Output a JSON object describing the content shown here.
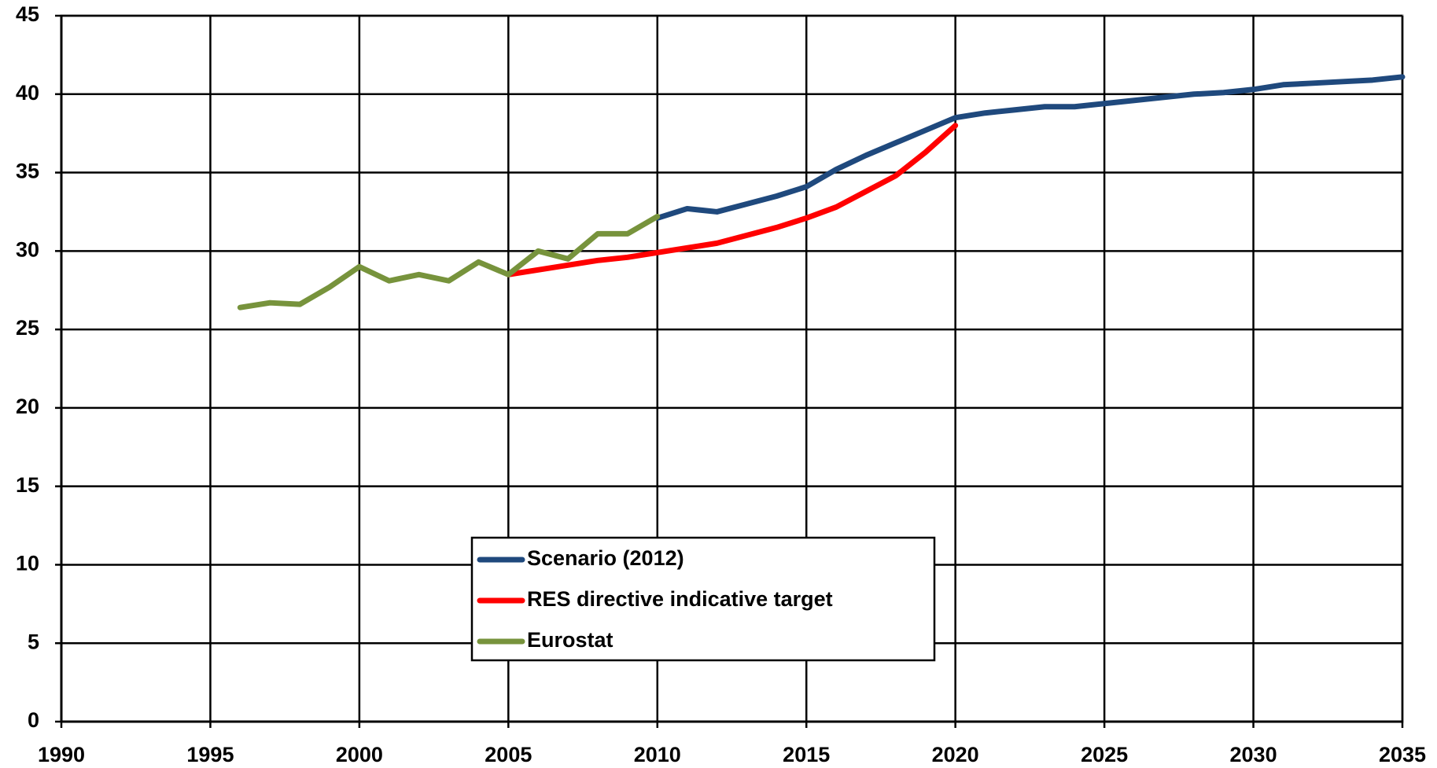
{
  "chart_data": {
    "type": "line",
    "xlim": [
      1990,
      2035
    ],
    "xticks": [
      1990,
      1995,
      2000,
      2005,
      2010,
      2015,
      2020,
      2025,
      2030,
      2035
    ],
    "ylim": [
      0,
      45
    ],
    "yticks": [
      0,
      5,
      10,
      15,
      20,
      25,
      30,
      35,
      40,
      45
    ],
    "grid": true,
    "legend": "bottom-center",
    "series": [
      {
        "name": "Scenario (2012)",
        "color": "#1f497d",
        "x": [
          2010,
          2011,
          2012,
          2013,
          2014,
          2015,
          2016,
          2017,
          2018,
          2019,
          2020,
          2021,
          2022,
          2023,
          2024,
          2025,
          2026,
          2027,
          2028,
          2029,
          2030,
          2031,
          2032,
          2033,
          2034,
          2035
        ],
        "values": [
          32.1,
          32.7,
          32.5,
          33.0,
          33.5,
          34.1,
          35.2,
          36.1,
          36.9,
          37.7,
          38.5,
          38.8,
          39.0,
          39.2,
          39.2,
          39.4,
          39.6,
          39.8,
          40.0,
          40.1,
          40.3,
          40.6,
          40.7,
          40.8,
          40.9,
          41.1
        ]
      },
      {
        "name": "RES directive indicative target",
        "color": "#ff0000",
        "x": [
          2005,
          2006,
          2007,
          2008,
          2009,
          2010,
          2011,
          2012,
          2013,
          2014,
          2015,
          2016,
          2017,
          2018,
          2019,
          2020
        ],
        "values": [
          28.5,
          28.8,
          29.1,
          29.4,
          29.6,
          29.9,
          30.2,
          30.5,
          31.0,
          31.5,
          32.1,
          32.8,
          33.8,
          34.8,
          36.3,
          38.0
        ]
      },
      {
        "name": "Eurostat",
        "color": "#77933c",
        "x": [
          1996,
          1997,
          1998,
          1999,
          2000,
          2001,
          2002,
          2003,
          2004,
          2005,
          2006,
          2007,
          2008,
          2009,
          2010
        ],
        "values": [
          26.4,
          26.7,
          26.6,
          27.7,
          29.0,
          28.1,
          28.5,
          28.1,
          29.3,
          28.5,
          30.0,
          29.5,
          31.1,
          31.1,
          32.2
        ]
      }
    ]
  }
}
